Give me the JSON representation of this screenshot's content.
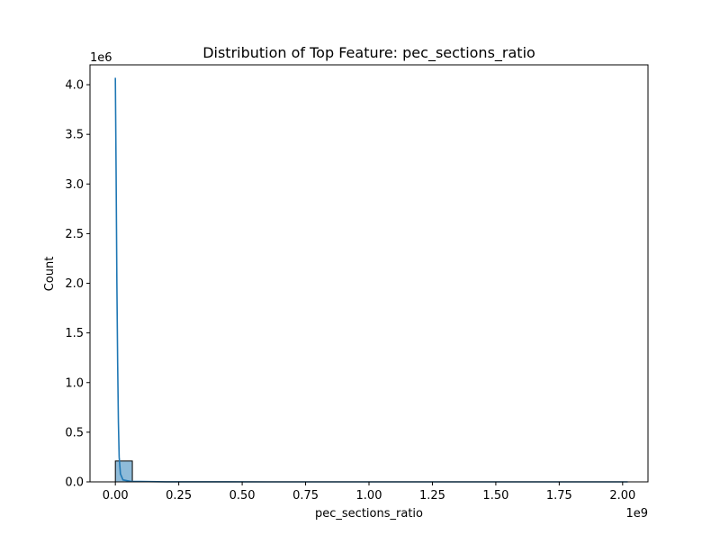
{
  "chart_data": {
    "type": "histogram",
    "title": "Distribution of Top Feature: pec_sections_ratio",
    "xlabel": "pec_sections_ratio",
    "ylabel": "Count",
    "x_offset_label": "1e9",
    "y_offset_label": "1e6",
    "xlim": [
      -0.1,
      2.1
    ],
    "ylim": [
      0,
      4.2
    ],
    "x_ticks": [
      0.0,
      0.25,
      0.5,
      0.75,
      1.0,
      1.25,
      1.5,
      1.75,
      2.0
    ],
    "x_tick_labels": [
      "0.00",
      "0.25",
      "0.50",
      "0.75",
      "1.00",
      "1.25",
      "1.50",
      "1.75",
      "2.00"
    ],
    "y_ticks": [
      0.0,
      0.5,
      1.0,
      1.5,
      2.0,
      2.5,
      3.0,
      3.5,
      4.0
    ],
    "y_tick_labels": [
      "0.0",
      "0.5",
      "1.0",
      "1.5",
      "2.0",
      "2.5",
      "3.0",
      "3.5",
      "4.0"
    ],
    "bins": [
      {
        "x0": 0.0,
        "x1": 0.067,
        "count": 0.21
      }
    ],
    "kde": {
      "x": [
        0.0,
        0.003,
        0.006,
        0.009,
        0.012,
        0.015,
        0.02,
        0.03,
        0.06,
        0.2,
        0.6,
        1.0,
        1.5,
        2.0,
        2.02
      ],
      "y": [
        4.07,
        3.1,
        2.0,
        1.2,
        0.6,
        0.25,
        0.08,
        0.02,
        0.005,
        0.001,
        0.0,
        0.0,
        0.0,
        0.0,
        0.0
      ]
    },
    "colors": {
      "bar_fill": "#1f77b4",
      "bar_fill_opacity": 0.5,
      "bar_edge": "#000000",
      "kde_line": "#1f77b4"
    },
    "grid": false,
    "legend": "none"
  }
}
